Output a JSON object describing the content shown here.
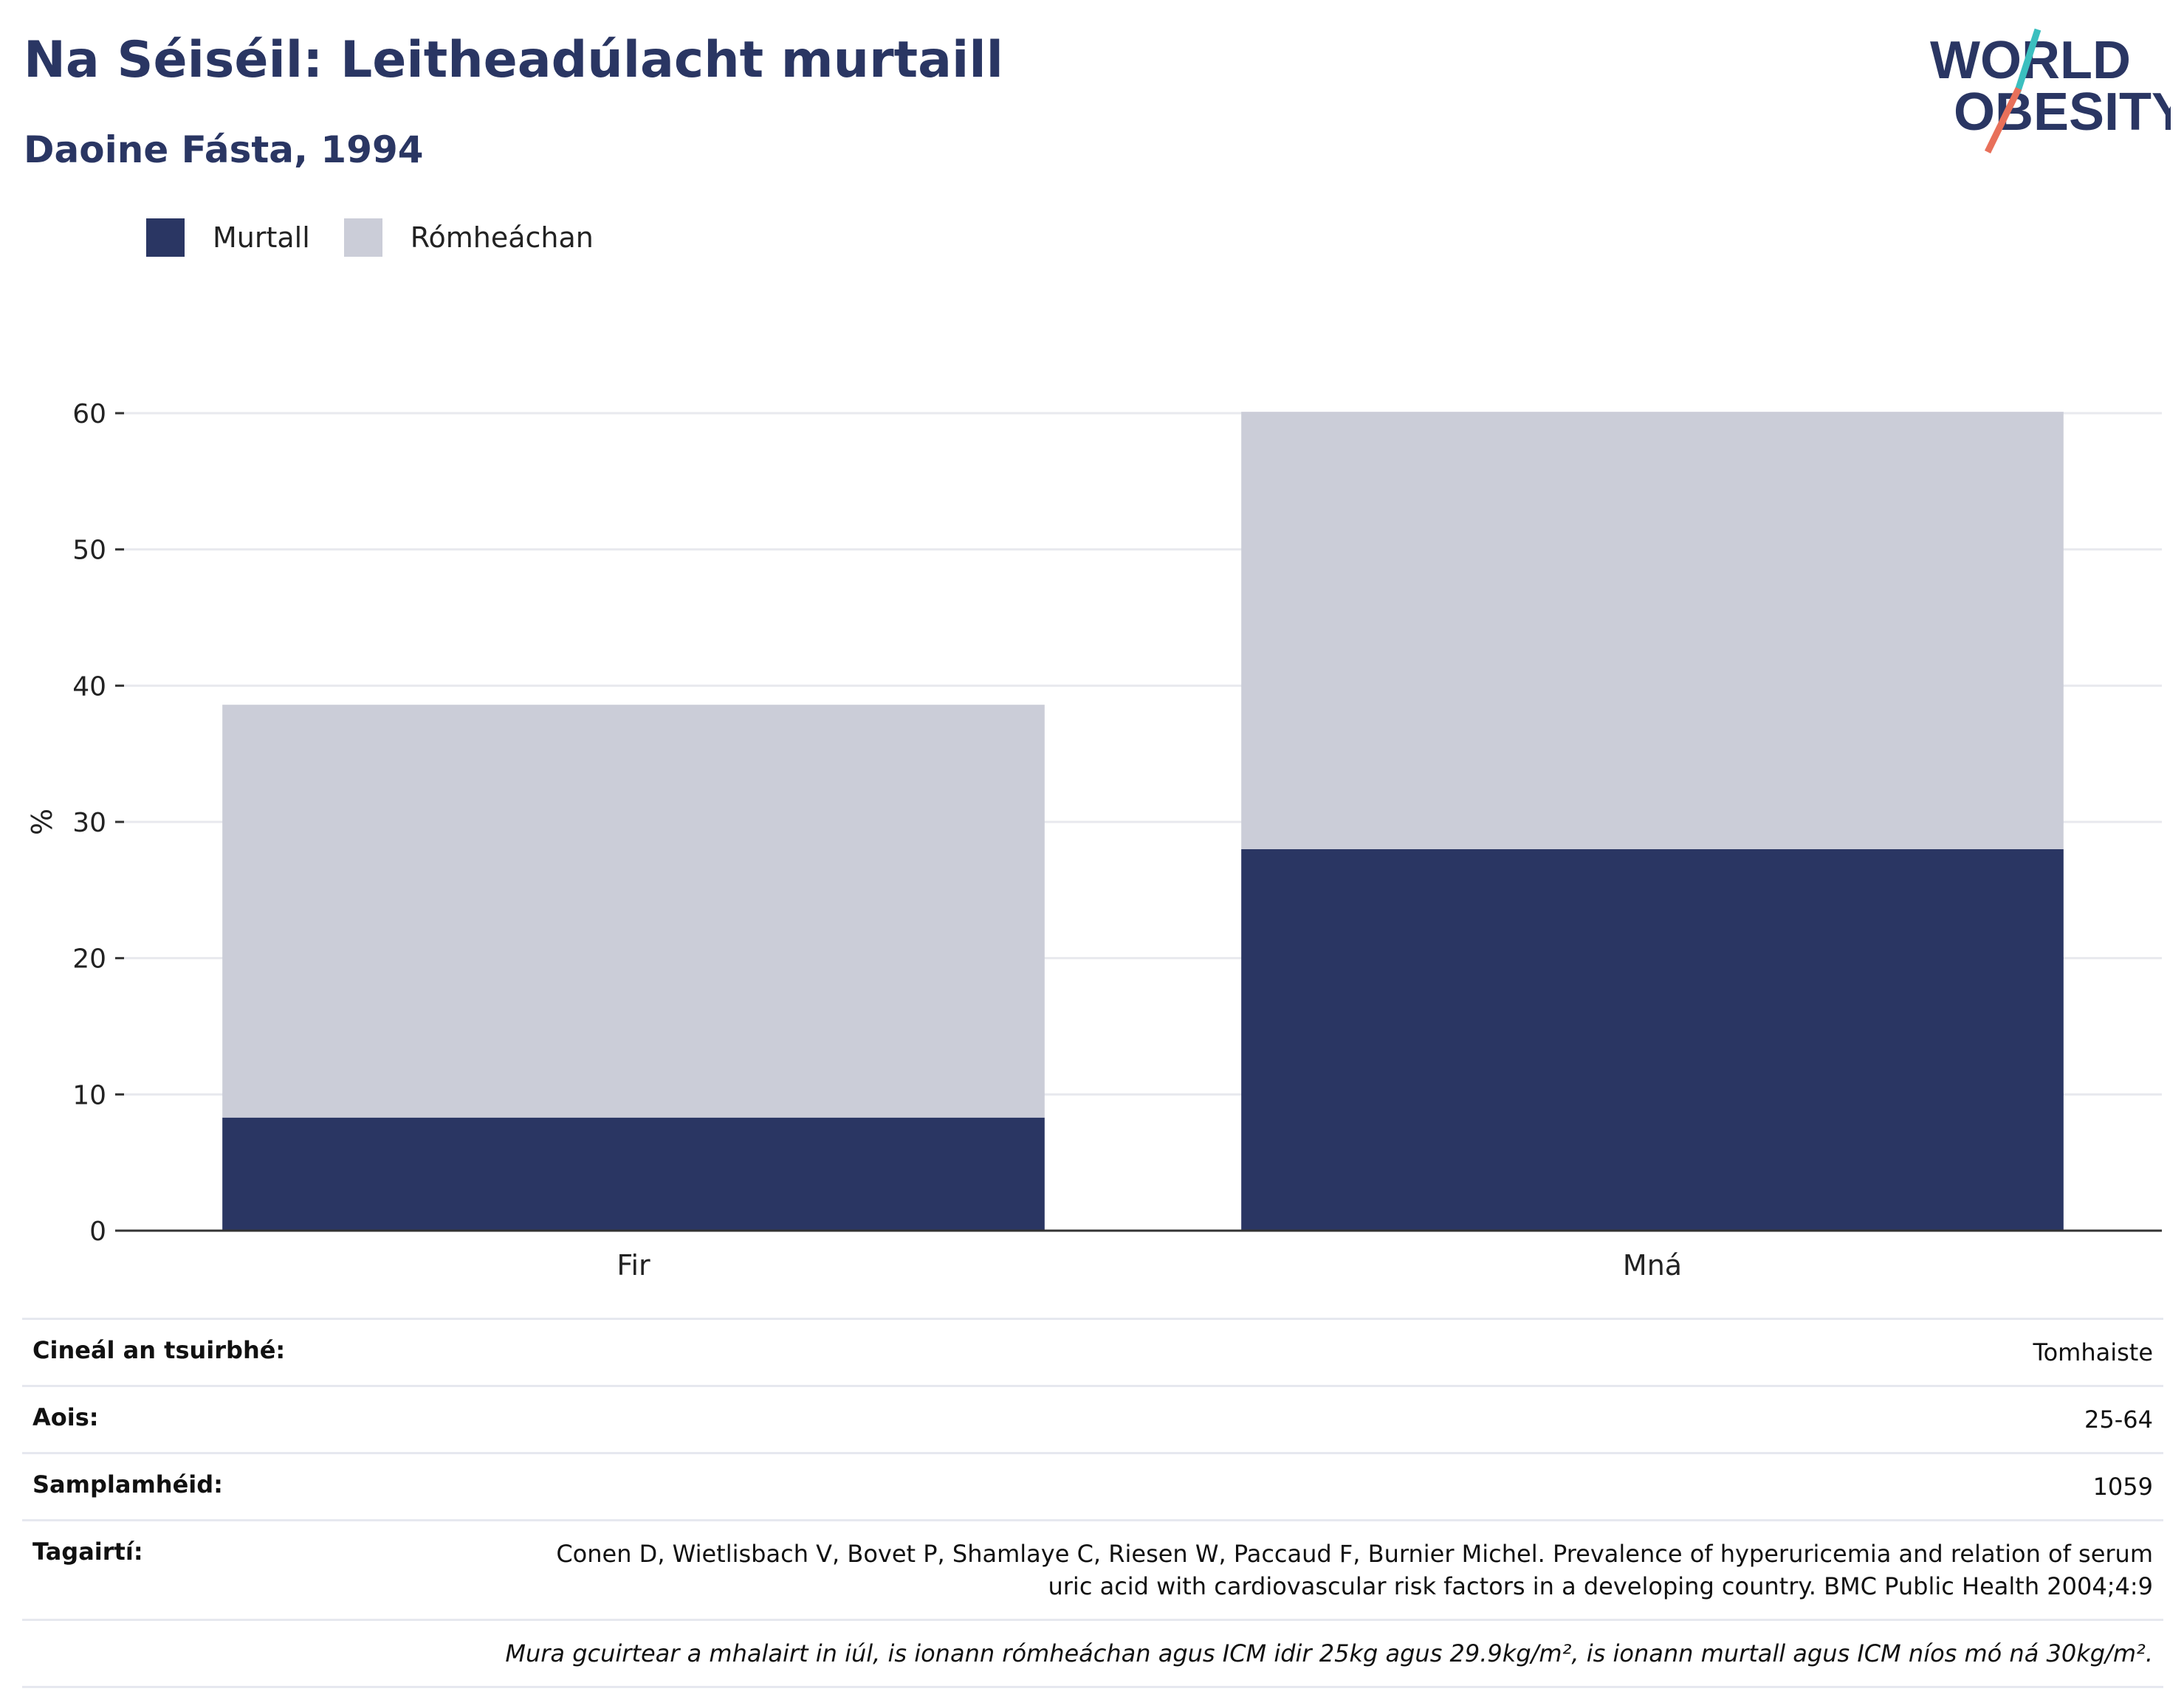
{
  "header": {
    "title": "Na Séiséil: Leitheadúlacht murtaill",
    "subtitle": "Daoine Fásta, 1994"
  },
  "logo": {
    "line1": "WORLD",
    "line2": "OBESITY"
  },
  "colors": {
    "obesity": "#2a3663",
    "overweight": "#cbcdd8",
    "text": "#2a3663",
    "grid": "#e8e9ee"
  },
  "chart_data": {
    "type": "bar",
    "stacked": true,
    "categories": [
      "Fir",
      "Mná"
    ],
    "series": [
      {
        "name": "Murtall",
        "values": [
          8.3,
          28.0
        ]
      },
      {
        "name": "Rómheáchan",
        "values": [
          30.3,
          32.1
        ]
      }
    ],
    "ylabel": "%",
    "ylim": [
      0,
      60
    ],
    "yticks": [
      0,
      10,
      20,
      30,
      40,
      50,
      60
    ],
    "grid": true,
    "legend_position": "top-left"
  },
  "legend": {
    "items": [
      "Murtall",
      "Rómheáchan"
    ]
  },
  "meta": {
    "survey_type_label": "Cineál an tsuirbhé:",
    "survey_type_value": "Tomhaiste",
    "age_label": "Aois:",
    "age_value": "25-64",
    "sample_label": "Samplamhéid:",
    "sample_value": "1059",
    "references_label": "Tagairtí:",
    "references_line1": "Conen D, Wietlisbach V, Bovet P, Shamlaye C, Riesen W, Paccaud F, Burnier Michel. Prevalence of hyperuricemia and relation of serum",
    "references_line2": "uric acid with cardiovascular risk factors in a developing country. BMC Public Health 2004;4:9",
    "note": "Mura gcuirtear a mhalairt in iúl, is ionann rómheáchan agus ICM idir 25kg agus 29.9kg/m², is ionann murtall agus ICM níos mó ná 30kg/m²."
  }
}
